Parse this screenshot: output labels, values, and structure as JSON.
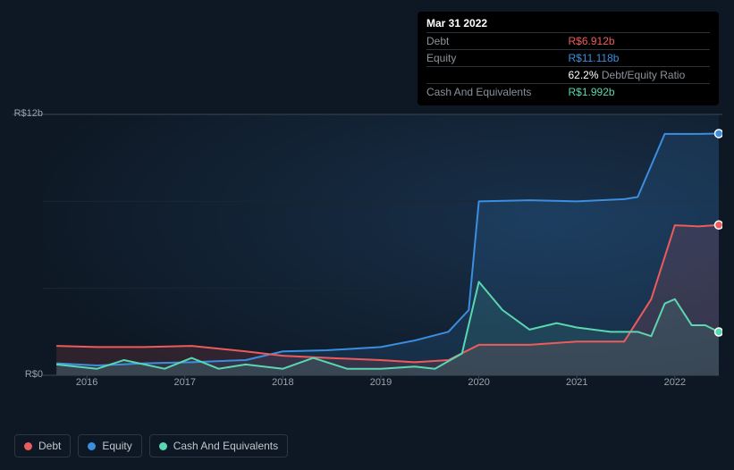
{
  "chart": {
    "type": "area",
    "background_color": "#0e1824",
    "grid_color": "#1b2632",
    "baseline_color": "#3a4652",
    "axis_text_color": "#9aa3ab",
    "axis_fontsize": 11,
    "y_axis": {
      "min": 0,
      "max": 12,
      "ticks": [
        {
          "value": 0,
          "label": "R$0"
        },
        {
          "value": 12,
          "label": "R$12b"
        }
      ]
    },
    "x_axis": {
      "labels": [
        "2016",
        "2017",
        "2018",
        "2019",
        "2020",
        "2021",
        "2022"
      ],
      "positions": [
        0.065,
        0.21,
        0.355,
        0.5,
        0.645,
        0.79,
        0.935
      ]
    },
    "series": {
      "debt": {
        "label": "Debt",
        "color": "#eb5c5c",
        "fill_opacity": 0.15,
        "x": [
          0.02,
          0.08,
          0.15,
          0.22,
          0.3,
          0.355,
          0.42,
          0.5,
          0.55,
          0.6,
          0.645,
          0.72,
          0.79,
          0.86,
          0.9,
          0.935,
          0.97,
          1.0
        ],
        "y": [
          1.35,
          1.3,
          1.3,
          1.35,
          1.1,
          0.9,
          0.8,
          0.7,
          0.6,
          0.7,
          1.4,
          1.4,
          1.55,
          1.55,
          3.5,
          6.9,
          6.85,
          6.912
        ]
      },
      "equity": {
        "label": "Equity",
        "color": "#3b8ee0",
        "fill_opacity": 0.15,
        "x": [
          0.02,
          0.08,
          0.15,
          0.22,
          0.3,
          0.355,
          0.42,
          0.5,
          0.55,
          0.6,
          0.63,
          0.645,
          0.72,
          0.79,
          0.86,
          0.88,
          0.92,
          0.97,
          1.0
        ],
        "y": [
          0.55,
          0.45,
          0.55,
          0.6,
          0.7,
          1.1,
          1.15,
          1.3,
          1.6,
          2.0,
          3.0,
          8.0,
          8.05,
          8.0,
          8.1,
          8.2,
          11.1,
          11.1,
          11.118
        ]
      },
      "cash": {
        "label": "Cash And Equivalents",
        "color": "#5ad6b0",
        "fill_opacity": 0.12,
        "x": [
          0.02,
          0.08,
          0.12,
          0.18,
          0.22,
          0.26,
          0.3,
          0.355,
          0.4,
          0.45,
          0.5,
          0.55,
          0.58,
          0.62,
          0.645,
          0.68,
          0.72,
          0.76,
          0.79,
          0.84,
          0.88,
          0.9,
          0.92,
          0.935,
          0.96,
          0.98,
          1.0
        ],
        "y": [
          0.5,
          0.3,
          0.7,
          0.3,
          0.8,
          0.3,
          0.5,
          0.3,
          0.8,
          0.3,
          0.3,
          0.4,
          0.3,
          1.0,
          4.3,
          3.0,
          2.1,
          2.4,
          2.2,
          2.0,
          2.0,
          1.8,
          3.3,
          3.5,
          2.3,
          2.3,
          1.992
        ]
      }
    },
    "end_markers": [
      {
        "series": "equity",
        "color": "#3b8ee0"
      },
      {
        "series": "debt",
        "color": "#eb5c5c"
      },
      {
        "series": "cash",
        "color": "#5ad6b0"
      }
    ]
  },
  "tooltip": {
    "title": "Mar 31 2022",
    "rows": [
      {
        "label": "Debt",
        "value": "R$6.912b",
        "color": "#eb5c5c"
      },
      {
        "label": "Equity",
        "value": "R$11.118b",
        "color": "#3b8ee0"
      },
      {
        "label": "",
        "value": "62.2%",
        "suffix": "Debt/Equity Ratio",
        "color": "#ffffff",
        "suffix_color": "#8a929a"
      },
      {
        "label": "Cash And Equivalents",
        "value": "R$1.992b",
        "color": "#5ad6b0"
      }
    ]
  },
  "legend": [
    {
      "label": "Debt",
      "color": "#eb5c5c"
    },
    {
      "label": "Equity",
      "color": "#3b8ee0"
    },
    {
      "label": "Cash And Equivalents",
      "color": "#5ad6b0"
    }
  ]
}
